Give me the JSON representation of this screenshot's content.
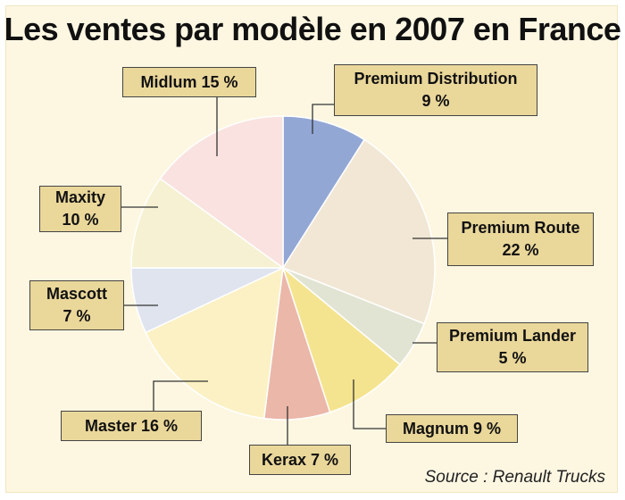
{
  "chart_data": {
    "type": "pie",
    "title": "Les ventes par modèle en 2007 en France",
    "source": "Source : Renault Trucks",
    "slices": [
      {
        "label": "Premium Distribution",
        "value": 9,
        "value_text": "9 %",
        "color": "#93a7d5"
      },
      {
        "label": "Premium Route",
        "value": 22,
        "value_text": "22 %",
        "color": "#f1e7d4"
      },
      {
        "label": "Premium Lander",
        "value": 5,
        "value_text": "5 %",
        "color": "#e2e4d3"
      },
      {
        "label": "Magnum",
        "value": 9,
        "value_text": "9 %",
        "color": "#f5e48f"
      },
      {
        "label": "Kerax",
        "value": 7,
        "value_text": "7 %",
        "color": "#ebb7a8"
      },
      {
        "label": "Master",
        "value": 16,
        "value_text": "16 %",
        "color": "#fbf1c4"
      },
      {
        "label": "Mascott",
        "value": 7,
        "value_text": "7 %",
        "color": "#dfe4ef"
      },
      {
        "label": "Maxity",
        "value": 10,
        "value_text": "10 %",
        "color": "#f5f1d2"
      },
      {
        "label": "Midlum",
        "value": 15,
        "value_text": "15 %",
        "color": "#f9e2df"
      }
    ]
  }
}
